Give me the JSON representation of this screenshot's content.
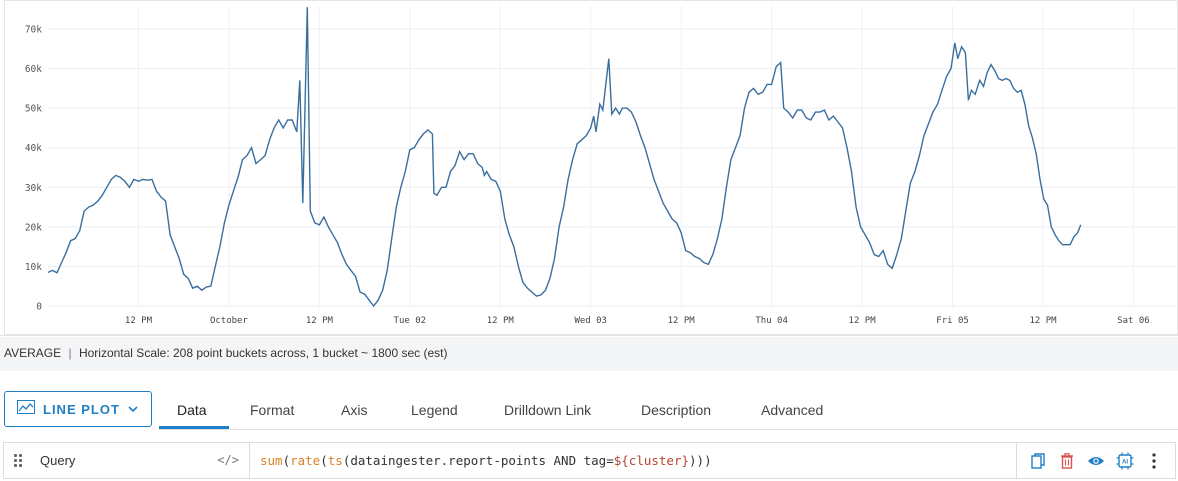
{
  "chart_data": {
    "type": "line",
    "title": "",
    "xlabel": "",
    "ylabel": "",
    "ylim": [
      0,
      76000
    ],
    "y_ticks": [
      {
        "value": 0,
        "label": "0"
      },
      {
        "value": 10000,
        "label": "10k"
      },
      {
        "value": 20000,
        "label": "20k"
      },
      {
        "value": 30000,
        "label": "30k"
      },
      {
        "value": 40000,
        "label": "40k"
      },
      {
        "value": 50000,
        "label": "50k"
      },
      {
        "value": 60000,
        "label": "60k"
      },
      {
        "value": 70000,
        "label": "70k"
      }
    ],
    "x_range_hours": [
      0,
      132
    ],
    "x_ticks": [
      {
        "t": 12,
        "label": "12 PM"
      },
      {
        "t": 24,
        "label": "October"
      },
      {
        "t": 36,
        "label": "12 PM"
      },
      {
        "t": 48,
        "label": "Tue 02"
      },
      {
        "t": 60,
        "label": "12 PM"
      },
      {
        "t": 72,
        "label": "Wed 03"
      },
      {
        "t": 84,
        "label": "12 PM"
      },
      {
        "t": 96,
        "label": "Thu 04"
      },
      {
        "t": 108,
        "label": "12 PM"
      },
      {
        "t": 120,
        "label": "Fri 05"
      },
      {
        "t": 132,
        "label": "12 PM"
      },
      {
        "t": 144,
        "label": "Sat 06"
      }
    ],
    "grid": true,
    "series": [
      {
        "color": "#3a6e9e",
        "points": [
          [
            0.0,
            8500
          ],
          [
            0.6,
            9000
          ],
          [
            1.2,
            8400
          ],
          [
            1.8,
            11000
          ],
          [
            2.4,
            13500
          ],
          [
            3.0,
            16500
          ],
          [
            3.6,
            17000
          ],
          [
            4.2,
            19000
          ],
          [
            4.8,
            24000
          ],
          [
            5.4,
            25000
          ],
          [
            6.0,
            25500
          ],
          [
            6.6,
            26500
          ],
          [
            7.2,
            28000
          ],
          [
            7.8,
            30000
          ],
          [
            8.4,
            32000
          ],
          [
            9.0,
            33000
          ],
          [
            9.6,
            32500
          ],
          [
            10.2,
            31500
          ],
          [
            10.8,
            30000
          ],
          [
            11.4,
            32000
          ],
          [
            12.0,
            31500
          ],
          [
            12.6,
            32000
          ],
          [
            13.2,
            31800
          ],
          [
            13.8,
            32000
          ],
          [
            14.4,
            29000
          ],
          [
            15.0,
            27500
          ],
          [
            15.6,
            26500
          ],
          [
            16.2,
            18000
          ],
          [
            16.8,
            15000
          ],
          [
            17.4,
            12000
          ],
          [
            18.0,
            8000
          ],
          [
            18.6,
            7000
          ],
          [
            19.2,
            4500
          ],
          [
            19.8,
            5000
          ],
          [
            20.4,
            4000
          ],
          [
            21.0,
            4800
          ],
          [
            21.6,
            5000
          ],
          [
            22.2,
            10000
          ],
          [
            22.8,
            15000
          ],
          [
            23.4,
            21000
          ],
          [
            24.0,
            25500
          ],
          [
            24.6,
            29000
          ],
          [
            25.2,
            32500
          ],
          [
            25.8,
            37000
          ],
          [
            26.4,
            38000
          ],
          [
            27.0,
            40000
          ],
          [
            27.6,
            36000
          ],
          [
            28.2,
            37000
          ],
          [
            28.8,
            38000
          ],
          [
            29.4,
            42000
          ],
          [
            30.0,
            45000
          ],
          [
            30.6,
            47000
          ],
          [
            31.2,
            45000
          ],
          [
            31.8,
            47000
          ],
          [
            32.4,
            47000
          ],
          [
            33.0,
            44000
          ],
          [
            33.4,
            57000
          ],
          [
            33.8,
            26000
          ],
          [
            34.4,
            75500
          ],
          [
            34.8,
            24000
          ],
          [
            35.4,
            21000
          ],
          [
            36.0,
            20500
          ],
          [
            36.6,
            22500
          ],
          [
            37.2,
            20000
          ],
          [
            37.8,
            18000
          ],
          [
            38.4,
            16000
          ],
          [
            39.0,
            13000
          ],
          [
            39.6,
            10500
          ],
          [
            40.2,
            9000
          ],
          [
            40.8,
            7500
          ],
          [
            41.4,
            3500
          ],
          [
            42.0,
            3000
          ],
          [
            42.6,
            1500
          ],
          [
            43.2,
            0
          ],
          [
            43.8,
            1500
          ],
          [
            44.4,
            4000
          ],
          [
            45.0,
            9000
          ],
          [
            45.6,
            17000
          ],
          [
            46.2,
            25000
          ],
          [
            46.8,
            30000
          ],
          [
            47.4,
            34000
          ],
          [
            48.0,
            39500
          ],
          [
            48.6,
            40000
          ],
          [
            49.2,
            42000
          ],
          [
            49.8,
            43500
          ],
          [
            50.4,
            44500
          ],
          [
            51.0,
            43500
          ],
          [
            51.2,
            28500
          ],
          [
            51.6,
            28000
          ],
          [
            52.2,
            30000
          ],
          [
            52.8,
            30000
          ],
          [
            53.4,
            34000
          ],
          [
            54.0,
            35500
          ],
          [
            54.6,
            39000
          ],
          [
            55.2,
            37000
          ],
          [
            55.8,
            38500
          ],
          [
            56.4,
            38500
          ],
          [
            57.0,
            36000
          ],
          [
            57.6,
            35000
          ],
          [
            57.9,
            33000
          ],
          [
            58.2,
            34000
          ],
          [
            58.8,
            32000
          ],
          [
            59.4,
            31500
          ],
          [
            60.0,
            29000
          ],
          [
            60.6,
            22000
          ],
          [
            61.2,
            18000
          ],
          [
            61.8,
            15000
          ],
          [
            62.4,
            10000
          ],
          [
            63.0,
            6000
          ],
          [
            63.6,
            4500
          ],
          [
            64.2,
            3500
          ],
          [
            64.8,
            2500
          ],
          [
            65.4,
            2800
          ],
          [
            66.0,
            4000
          ],
          [
            66.6,
            7000
          ],
          [
            67.2,
            12000
          ],
          [
            67.8,
            20000
          ],
          [
            68.4,
            25000
          ],
          [
            69.0,
            32000
          ],
          [
            69.6,
            37000
          ],
          [
            70.2,
            41000
          ],
          [
            70.8,
            42000
          ],
          [
            71.4,
            43000
          ],
          [
            72.0,
            45000
          ],
          [
            72.4,
            48000
          ],
          [
            72.7,
            44000
          ],
          [
            73.2,
            51000
          ],
          [
            73.6,
            49500
          ],
          [
            74.4,
            62500
          ],
          [
            74.8,
            48500
          ],
          [
            75.3,
            50000
          ],
          [
            75.8,
            48500
          ],
          [
            76.2,
            50000
          ],
          [
            76.8,
            50000
          ],
          [
            77.4,
            49000
          ],
          [
            78.0,
            46500
          ],
          [
            78.6,
            43000
          ],
          [
            79.2,
            40000
          ],
          [
            79.8,
            36000
          ],
          [
            80.4,
            32000
          ],
          [
            81.0,
            29000
          ],
          [
            81.6,
            26000
          ],
          [
            82.2,
            24000
          ],
          [
            82.8,
            22000
          ],
          [
            83.4,
            21000
          ],
          [
            84.0,
            18500
          ],
          [
            84.6,
            14000
          ],
          [
            85.2,
            13500
          ],
          [
            85.8,
            12500
          ],
          [
            86.4,
            12000
          ],
          [
            87.0,
            11000
          ],
          [
            87.6,
            10500
          ],
          [
            88.2,
            13000
          ],
          [
            88.8,
            17000
          ],
          [
            89.4,
            22000
          ],
          [
            90.0,
            30000
          ],
          [
            90.6,
            37000
          ],
          [
            91.2,
            40000
          ],
          [
            91.8,
            43000
          ],
          [
            92.4,
            50000
          ],
          [
            93.0,
            54000
          ],
          [
            93.6,
            55000
          ],
          [
            94.2,
            53500
          ],
          [
            94.8,
            54000
          ],
          [
            95.4,
            56000
          ],
          [
            96.0,
            56000
          ],
          [
            96.6,
            60500
          ],
          [
            97.2,
            61500
          ],
          [
            97.6,
            50000
          ],
          [
            98.2,
            49000
          ],
          [
            98.8,
            47500
          ],
          [
            99.4,
            49500
          ],
          [
            100.0,
            49500
          ],
          [
            100.6,
            47500
          ],
          [
            101.2,
            47000
          ],
          [
            101.8,
            49000
          ],
          [
            102.4,
            49000
          ],
          [
            103.0,
            49500
          ],
          [
            103.6,
            47000
          ],
          [
            104.2,
            48000
          ],
          [
            104.8,
            46500
          ],
          [
            105.4,
            45000
          ],
          [
            106.0,
            40000
          ],
          [
            106.6,
            34000
          ],
          [
            107.2,
            25000
          ],
          [
            107.8,
            20000
          ],
          [
            108.4,
            18000
          ],
          [
            109.0,
            16000
          ],
          [
            109.6,
            13000
          ],
          [
            110.2,
            12500
          ],
          [
            110.8,
            14000
          ],
          [
            111.4,
            10500
          ],
          [
            112.0,
            9500
          ],
          [
            112.6,
            13000
          ],
          [
            113.2,
            17000
          ],
          [
            113.8,
            24000
          ],
          [
            114.4,
            31000
          ],
          [
            115.0,
            34000
          ],
          [
            115.6,
            38000
          ],
          [
            116.2,
            43000
          ],
          [
            116.8,
            46000
          ],
          [
            117.4,
            49000
          ],
          [
            118.0,
            51000
          ],
          [
            118.6,
            54500
          ],
          [
            119.2,
            58000
          ],
          [
            119.8,
            60000
          ],
          [
            120.3,
            66500
          ],
          [
            120.7,
            62500
          ],
          [
            121.2,
            65500
          ],
          [
            121.7,
            64000
          ],
          [
            122.1,
            52000
          ],
          [
            122.5,
            54500
          ],
          [
            123.0,
            53500
          ],
          [
            123.6,
            57000
          ],
          [
            124.1,
            55500
          ],
          [
            124.6,
            59000
          ],
          [
            125.1,
            61000
          ],
          [
            125.6,
            59500
          ],
          [
            126.1,
            57500
          ],
          [
            126.6,
            57000
          ],
          [
            127.1,
            57500
          ],
          [
            127.6,
            57000
          ],
          [
            128.1,
            55000
          ],
          [
            128.6,
            54000
          ],
          [
            129.1,
            54500
          ],
          [
            129.6,
            51000
          ],
          [
            130.1,
            45500
          ],
          [
            130.6,
            42500
          ],
          [
            131.1,
            38500
          ],
          [
            131.6,
            32000
          ],
          [
            132.1,
            27000
          ],
          [
            132.6,
            25500
          ],
          [
            133.1,
            20000
          ],
          [
            133.6,
            18000
          ],
          [
            134.1,
            16500
          ],
          [
            134.6,
            15500
          ],
          [
            135.1,
            15500
          ],
          [
            135.6,
            15500
          ],
          [
            136.1,
            17500
          ],
          [
            136.6,
            18500
          ],
          [
            137.0,
            20500
          ]
        ]
      }
    ]
  },
  "scale_bar": {
    "aggregation": "AVERAGE",
    "separator": "|",
    "text": "Horizontal Scale: 208 point buckets across, 1 bucket ~ 1800 sec (est)"
  },
  "plot_type": {
    "label": "LINE PLOT",
    "icon": "line-chart-icon"
  },
  "tabs": [
    {
      "label": "Data",
      "active": true
    },
    {
      "label": "Format",
      "active": false
    },
    {
      "label": "Axis",
      "active": false
    },
    {
      "label": "Legend",
      "active": false
    },
    {
      "label": "Drilldown Link",
      "active": false
    },
    {
      "label": "Description",
      "active": false
    },
    {
      "label": "Advanced",
      "active": false
    }
  ],
  "query": {
    "name": "Query",
    "code_toggle": "</>",
    "expression_parts": {
      "fn_sum": "sum",
      "p1": "(",
      "fn_rate": "rate",
      "p2": "(",
      "fn_ts": "ts",
      "mid": "(dataingester.report-points AND tag=",
      "var": "${cluster}",
      "close": ")))"
    }
  },
  "colors": {
    "accent": "#1f7fc6",
    "series_line": "#3a6e9e",
    "delete": "#d9534f"
  }
}
